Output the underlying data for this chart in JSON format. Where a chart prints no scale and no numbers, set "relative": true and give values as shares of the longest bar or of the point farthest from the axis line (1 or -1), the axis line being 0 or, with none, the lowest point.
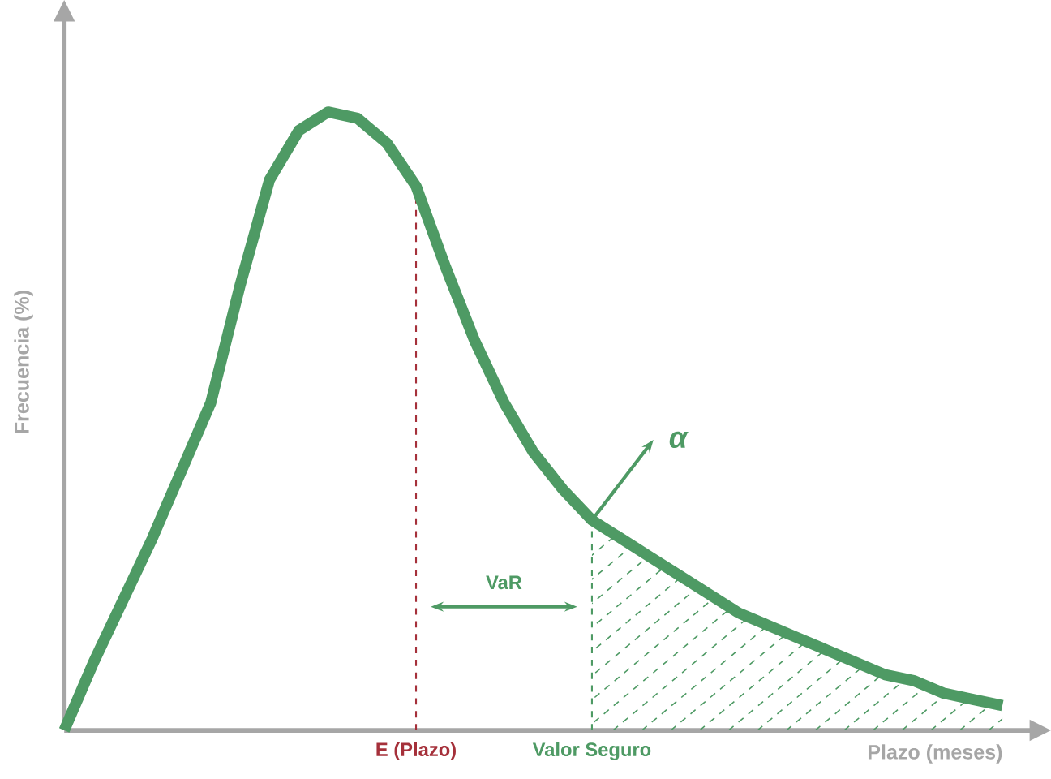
{
  "chart_data": {
    "type": "line",
    "relative": true,
    "xlabel": "Plazo (meses)",
    "ylabel": "Frecuencia (%)",
    "categories": [
      null,
      null,
      null,
      null,
      null,
      null,
      null,
      null,
      null,
      null,
      null,
      null,
      "E (Plazo)",
      null,
      null,
      null,
      null,
      null,
      "Valor Seguro",
      null,
      null,
      null,
      null,
      null,
      null,
      null,
      null,
      null,
      null,
      null,
      null,
      null,
      null
    ],
    "series": [
      {
        "color": "#4e9a64",
        "values": [
          0,
          0.11,
          0.21,
          0.31,
          0.42,
          0.53,
          0.72,
          0.89,
          0.97,
          1.0,
          0.99,
          0.95,
          0.88,
          0.75,
          0.63,
          0.53,
          0.45,
          0.39,
          0.34,
          0.31,
          0.28,
          0.25,
          0.22,
          0.19,
          0.17,
          0.15,
          0.13,
          0.11,
          0.09,
          0.08,
          0.06,
          0.05,
          0.04
        ]
      }
    ],
    "ref_lines": [
      {
        "axis": "x",
        "value": "E (Plazo)",
        "color": "#a5303a",
        "line_style": "dashed"
      },
      {
        "axis": "x",
        "value": "Valor Seguro",
        "color": "#4e9a64",
        "line_style": "dashed"
      }
    ],
    "annotations": [
      "VaR",
      {
        "text": "α",
        "x": "Valor Seguro",
        "y": 0.34
      }
    ]
  }
}
